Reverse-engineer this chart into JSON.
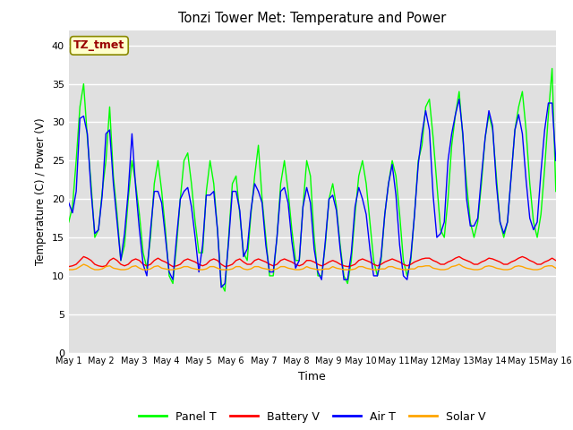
{
  "title": "Tonzi Tower Met: Temperature and Power",
  "xlabel": "Time",
  "ylabel": "Temperature (C) / Power (V)",
  "annotation_text": "TZ_tmet",
  "ylim": [
    0,
    42
  ],
  "yticks": [
    0,
    5,
    10,
    15,
    20,
    25,
    30,
    35,
    40
  ],
  "colors": {
    "panel_t": "#00FF00",
    "battery_v": "#FF0000",
    "air_t": "#0000FF",
    "solar_v": "#FFA500"
  },
  "legend_labels": [
    "Panel T",
    "Battery V",
    "Air T",
    "Solar V"
  ],
  "bg_color": "#E0E0E0",
  "annotation_box_color": "#FFFFCC",
  "annotation_text_color": "#990000",
  "grid_color": "#FFFFFF",
  "xtick_labels": [
    "May 1",
    "May 2",
    "May 3",
    "May 4",
    "May 5",
    "May 6",
    "May 7",
    "May 8",
    "May 9",
    "May 10",
    "May 11",
    "May 12",
    "May 13",
    "May 14",
    "May 15",
    "May 16"
  ],
  "panel_t": [
    17,
    19,
    25,
    32,
    35,
    28,
    22,
    15,
    16,
    21,
    25,
    32,
    23,
    18,
    12,
    14,
    20,
    25,
    22,
    18,
    13,
    11,
    15,
    22,
    25,
    21,
    16,
    10,
    9,
    14,
    20,
    25,
    26,
    22,
    17,
    13,
    13,
    21,
    25,
    22,
    16,
    9,
    8,
    15,
    22,
    23,
    18,
    13,
    12,
    18,
    23,
    27,
    20,
    15,
    10,
    10,
    15,
    22,
    25,
    21,
    16,
    12,
    12,
    19,
    25,
    23,
    15,
    10,
    10,
    14,
    20,
    22,
    19,
    14,
    10,
    9,
    12,
    18,
    23,
    25,
    22,
    17,
    12,
    10,
    12,
    18,
    22,
    25,
    23,
    18,
    12,
    10,
    12,
    18,
    25,
    27,
    32,
    33,
    28,
    22,
    16,
    15,
    20,
    27,
    31,
    34,
    28,
    22,
    17,
    15,
    17,
    22,
    28,
    31,
    29,
    23,
    17,
    15,
    17,
    23,
    29,
    32,
    34,
    29,
    22,
    17,
    15,
    18,
    24,
    31,
    37,
    21
  ],
  "battery_v": [
    11.2,
    11.3,
    11.5,
    12.0,
    12.5,
    12.3,
    12.0,
    11.5,
    11.3,
    11.2,
    11.3,
    12.0,
    12.3,
    12.0,
    11.5,
    11.3,
    11.5,
    12.0,
    12.2,
    12.0,
    11.5,
    11.3,
    11.5,
    12.0,
    12.3,
    12.0,
    11.8,
    11.5,
    11.2,
    11.3,
    11.5,
    12.0,
    12.2,
    12.0,
    11.8,
    11.5,
    11.3,
    11.5,
    12.0,
    12.2,
    12.0,
    11.5,
    11.2,
    11.3,
    11.5,
    12.0,
    12.2,
    11.8,
    11.5,
    11.5,
    12.0,
    12.2,
    12.0,
    11.8,
    11.5,
    11.3,
    11.5,
    12.0,
    12.2,
    12.0,
    11.8,
    11.5,
    11.3,
    11.5,
    12.0,
    12.0,
    11.8,
    11.5,
    11.3,
    11.5,
    11.8,
    12.0,
    11.8,
    11.5,
    11.3,
    11.2,
    11.3,
    11.5,
    12.0,
    12.2,
    12.0,
    11.8,
    11.5,
    11.3,
    11.5,
    11.8,
    12.0,
    12.2,
    12.0,
    11.8,
    11.5,
    11.3,
    11.5,
    11.8,
    12.0,
    12.2,
    12.3,
    12.3,
    12.0,
    11.8,
    11.5,
    11.5,
    11.8,
    12.0,
    12.3,
    12.5,
    12.2,
    12.0,
    11.8,
    11.5,
    11.5,
    11.8,
    12.0,
    12.3,
    12.2,
    12.0,
    11.8,
    11.5,
    11.5,
    11.8,
    12.0,
    12.3,
    12.5,
    12.3,
    12.0,
    11.8,
    11.5,
    11.5,
    11.8,
    12.0,
    12.3,
    12.0
  ],
  "air_t": [
    19.5,
    18.2,
    21.0,
    30.5,
    30.8,
    28.5,
    21.0,
    15.5,
    16.0,
    20.5,
    28.5,
    29.0,
    22.0,
    17.0,
    12.0,
    15.5,
    21.0,
    28.5,
    21.5,
    16.0,
    11.5,
    10.0,
    16.0,
    21.0,
    21.0,
    19.5,
    15.0,
    10.5,
    9.5,
    15.0,
    20.0,
    21.0,
    21.5,
    19.0,
    15.0,
    10.5,
    14.0,
    20.5,
    20.5,
    21.0,
    16.0,
    8.5,
    9.0,
    14.5,
    21.0,
    21.0,
    18.5,
    12.5,
    13.5,
    18.5,
    22.0,
    21.0,
    19.5,
    14.0,
    10.5,
    10.5,
    15.0,
    21.0,
    21.5,
    19.5,
    14.5,
    11.0,
    12.0,
    19.0,
    21.5,
    19.5,
    13.5,
    10.5,
    9.5,
    14.5,
    20.0,
    20.5,
    18.5,
    13.5,
    9.5,
    9.5,
    13.0,
    19.0,
    21.5,
    20.0,
    18.0,
    13.5,
    10.0,
    10.0,
    12.5,
    18.0,
    22.0,
    24.5,
    20.5,
    14.0,
    10.0,
    9.5,
    12.5,
    18.0,
    24.5,
    28.5,
    31.5,
    29.0,
    20.5,
    15.0,
    15.5,
    17.0,
    25.0,
    28.5,
    31.0,
    33.0,
    28.5,
    20.0,
    16.5,
    16.5,
    17.5,
    23.0,
    28.0,
    31.5,
    29.5,
    22.0,
    17.0,
    15.5,
    17.0,
    23.0,
    29.0,
    31.0,
    28.5,
    22.5,
    17.5,
    16.0,
    17.0,
    23.5,
    29.0,
    32.5,
    32.5,
    25.0
  ],
  "solar_v": [
    10.8,
    10.8,
    10.9,
    11.2,
    11.5,
    11.3,
    11.0,
    10.8,
    10.8,
    10.9,
    11.2,
    11.3,
    11.0,
    10.9,
    10.8,
    10.8,
    10.9,
    11.2,
    11.3,
    11.0,
    10.8,
    10.8,
    10.9,
    11.2,
    11.3,
    11.0,
    10.9,
    10.8,
    10.8,
    10.9,
    11.0,
    11.2,
    11.2,
    11.0,
    10.9,
    10.8,
    10.8,
    10.9,
    11.2,
    11.2,
    11.0,
    10.8,
    10.8,
    10.8,
    10.9,
    11.2,
    11.2,
    10.9,
    10.8,
    10.9,
    11.2,
    11.2,
    11.0,
    10.9,
    10.8,
    10.8,
    10.9,
    11.2,
    11.2,
    11.0,
    10.9,
    10.8,
    10.8,
    10.9,
    11.2,
    11.0,
    10.9,
    10.8,
    10.8,
    10.9,
    10.9,
    11.2,
    11.0,
    10.9,
    10.8,
    10.8,
    10.8,
    10.9,
    11.2,
    11.2,
    11.0,
    10.9,
    10.8,
    10.8,
    10.9,
    10.9,
    11.2,
    11.2,
    11.0,
    10.9,
    10.8,
    10.8,
    10.9,
    10.9,
    11.2,
    11.2,
    11.3,
    11.3,
    11.0,
    10.9,
    10.8,
    10.8,
    10.9,
    11.2,
    11.3,
    11.5,
    11.2,
    11.0,
    10.9,
    10.8,
    10.8,
    10.9,
    11.2,
    11.3,
    11.2,
    11.0,
    10.9,
    10.8,
    10.8,
    10.9,
    11.2,
    11.3,
    11.2,
    11.0,
    10.9,
    10.8,
    10.8,
    10.9,
    11.2,
    11.3,
    11.3,
    11.0
  ]
}
